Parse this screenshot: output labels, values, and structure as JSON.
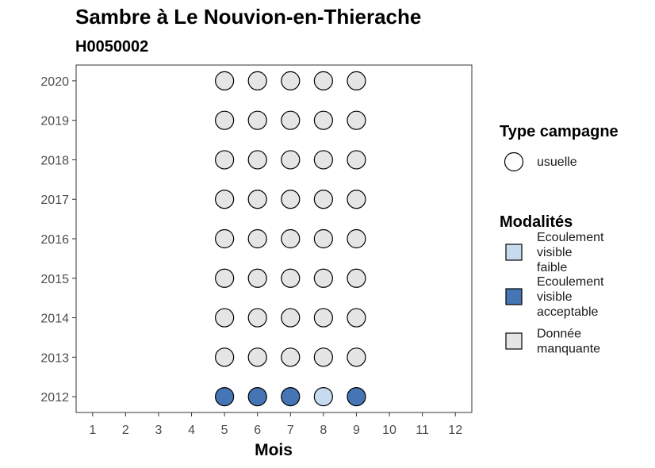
{
  "chart_data": {
    "type": "scatter",
    "title": "Sambre à Le Nouvion-en-Thierache",
    "subtitle": "H0050002",
    "xlabel": "Mois",
    "ylabel": "",
    "x_ticks": [
      "1",
      "2",
      "3",
      "4",
      "5",
      "6",
      "7",
      "8",
      "9",
      "10",
      "11",
      "12"
    ],
    "y_ticks": [
      "2012",
      "2013",
      "2014",
      "2015",
      "2016",
      "2017",
      "2018",
      "2019",
      "2020"
    ],
    "xlim": [
      0.5,
      12.5
    ],
    "ylim": [
      2011.6,
      2020.4
    ],
    "grid": false,
    "legend_position": "right",
    "colors": {
      "faible": "#c6dbef",
      "acceptable": "#4575b4",
      "manquante": "#e5e5e5",
      "outline": "#000000"
    },
    "legends": [
      {
        "title": "Type campagne",
        "items": [
          {
            "label_lines": [
              "usuelle"
            ],
            "shape": "circle",
            "color": "#ffffff"
          }
        ]
      },
      {
        "title": "Modalités",
        "items": [
          {
            "key": "faible",
            "label_lines": [
              "Ecoulement",
              "visible",
              "faible"
            ],
            "shape": "square",
            "color": "#c6dbef"
          },
          {
            "key": "acceptable",
            "label_lines": [
              "Ecoulement",
              "visible",
              "acceptable"
            ],
            "shape": "square",
            "color": "#4575b4"
          },
          {
            "key": "manquante",
            "label_lines": [
              "Donnée",
              "manquante"
            ],
            "shape": "square",
            "color": "#e5e5e5"
          }
        ]
      }
    ],
    "points": [
      {
        "year": 2012,
        "month": 5,
        "modalite": "acceptable"
      },
      {
        "year": 2012,
        "month": 6,
        "modalite": "acceptable"
      },
      {
        "year": 2012,
        "month": 7,
        "modalite": "acceptable"
      },
      {
        "year": 2012,
        "month": 8,
        "modalite": "faible"
      },
      {
        "year": 2012,
        "month": 9,
        "modalite": "acceptable"
      },
      {
        "year": 2013,
        "month": 5,
        "modalite": "manquante"
      },
      {
        "year": 2013,
        "month": 6,
        "modalite": "manquante"
      },
      {
        "year": 2013,
        "month": 7,
        "modalite": "manquante"
      },
      {
        "year": 2013,
        "month": 8,
        "modalite": "manquante"
      },
      {
        "year": 2013,
        "month": 9,
        "modalite": "manquante"
      },
      {
        "year": 2014,
        "month": 5,
        "modalite": "manquante"
      },
      {
        "year": 2014,
        "month": 6,
        "modalite": "manquante"
      },
      {
        "year": 2014,
        "month": 7,
        "modalite": "manquante"
      },
      {
        "year": 2014,
        "month": 8,
        "modalite": "manquante"
      },
      {
        "year": 2014,
        "month": 9,
        "modalite": "manquante"
      },
      {
        "year": 2015,
        "month": 5,
        "modalite": "manquante"
      },
      {
        "year": 2015,
        "month": 6,
        "modalite": "manquante"
      },
      {
        "year": 2015,
        "month": 7,
        "modalite": "manquante"
      },
      {
        "year": 2015,
        "month": 8,
        "modalite": "manquante"
      },
      {
        "year": 2015,
        "month": 9,
        "modalite": "manquante"
      },
      {
        "year": 2016,
        "month": 5,
        "modalite": "manquante"
      },
      {
        "year": 2016,
        "month": 6,
        "modalite": "manquante"
      },
      {
        "year": 2016,
        "month": 7,
        "modalite": "manquante"
      },
      {
        "year": 2016,
        "month": 8,
        "modalite": "manquante"
      },
      {
        "year": 2016,
        "month": 9,
        "modalite": "manquante"
      },
      {
        "year": 2017,
        "month": 5,
        "modalite": "manquante"
      },
      {
        "year": 2017,
        "month": 6,
        "modalite": "manquante"
      },
      {
        "year": 2017,
        "month": 7,
        "modalite": "manquante"
      },
      {
        "year": 2017,
        "month": 8,
        "modalite": "manquante"
      },
      {
        "year": 2017,
        "month": 9,
        "modalite": "manquante"
      },
      {
        "year": 2018,
        "month": 5,
        "modalite": "manquante"
      },
      {
        "year": 2018,
        "month": 6,
        "modalite": "manquante"
      },
      {
        "year": 2018,
        "month": 7,
        "modalite": "manquante"
      },
      {
        "year": 2018,
        "month": 8,
        "modalite": "manquante"
      },
      {
        "year": 2018,
        "month": 9,
        "modalite": "manquante"
      },
      {
        "year": 2019,
        "month": 5,
        "modalite": "manquante"
      },
      {
        "year": 2019,
        "month": 6,
        "modalite": "manquante"
      },
      {
        "year": 2019,
        "month": 7,
        "modalite": "manquante"
      },
      {
        "year": 2019,
        "month": 8,
        "modalite": "manquante"
      },
      {
        "year": 2019,
        "month": 9,
        "modalite": "manquante"
      },
      {
        "year": 2020,
        "month": 5,
        "modalite": "manquante"
      },
      {
        "year": 2020,
        "month": 6,
        "modalite": "manquante"
      },
      {
        "year": 2020,
        "month": 7,
        "modalite": "manquante"
      },
      {
        "year": 2020,
        "month": 8,
        "modalite": "manquante"
      },
      {
        "year": 2020,
        "month": 9,
        "modalite": "manquante"
      }
    ]
  }
}
